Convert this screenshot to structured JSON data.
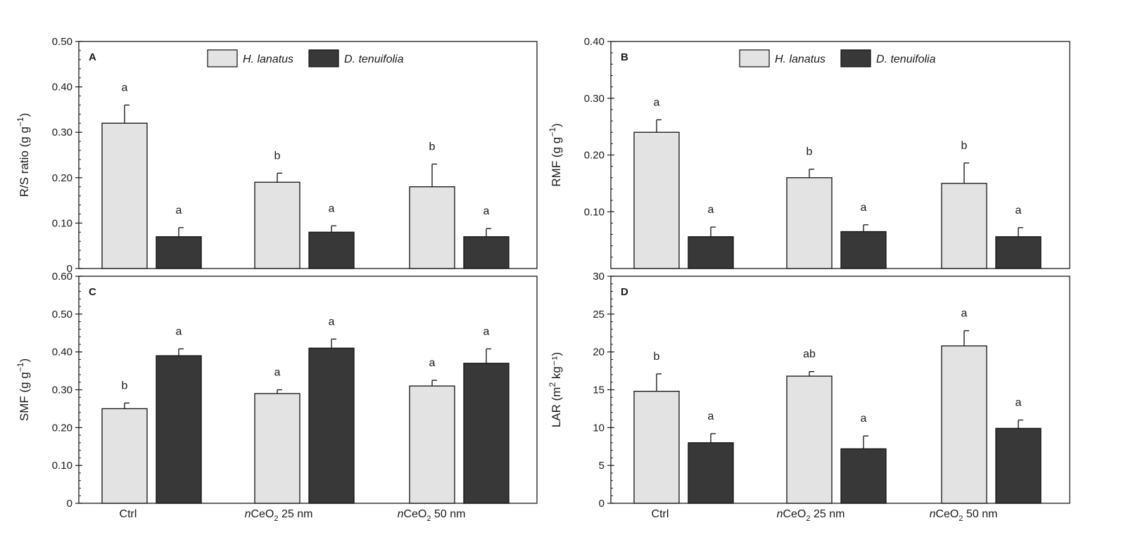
{
  "legend": {
    "series": [
      "H. lanatus",
      "D. tenuifolia"
    ]
  },
  "colors": {
    "h_lanatus": "#e3e3e3",
    "d_tenuifolia": "#383838",
    "axis": "#1a1a1a"
  },
  "x_categories": [
    {
      "prefix": "",
      "main": "Ctrl",
      "sub": "",
      "suffix": ""
    },
    {
      "prefix": "n",
      "main": "CeO",
      "sub": "2",
      "suffix": " 25 nm"
    },
    {
      "prefix": "n",
      "main": "CeO",
      "sub": "2",
      "suffix": " 50 nm"
    }
  ],
  "chart_data": [
    {
      "panel": "A",
      "type": "bar",
      "ylabel": "R/S ratio (g g⁻¹)",
      "ylim": [
        0,
        0.5
      ],
      "yticks": [
        0,
        0.1,
        0.2,
        0.3,
        0.4,
        0.5
      ],
      "ytick_labels": [
        "0",
        "0.10",
        "0.20",
        "0.30",
        "0.40",
        "0.50"
      ],
      "categories": [
        "Ctrl",
        "nCeO2 25 nm",
        "nCeO2 50 nm"
      ],
      "show_xlabels": false,
      "legend": true,
      "series": [
        {
          "name": "H. lanatus",
          "values": [
            0.32,
            0.19,
            0.18
          ],
          "errors": [
            0.04,
            0.02,
            0.05
          ],
          "labels": [
            "a",
            "b",
            "b"
          ]
        },
        {
          "name": "D. tenuifolia",
          "values": [
            0.07,
            0.08,
            0.07
          ],
          "errors": [
            0.02,
            0.014,
            0.018
          ],
          "labels": [
            "a",
            "a",
            "a"
          ]
        }
      ]
    },
    {
      "panel": "B",
      "type": "bar",
      "ylabel": "RMF (g g⁻¹)",
      "ylim": [
        0,
        0.4
      ],
      "yticks": [
        0.1,
        0.2,
        0.3,
        0.4
      ],
      "ytick_labels": [
        "0.10",
        "0.20",
        "0.30",
        "0.40"
      ],
      "categories": [
        "Ctrl",
        "nCeO2 25 nm",
        "nCeO2 50 nm"
      ],
      "show_xlabels": false,
      "legend": true,
      "series": [
        {
          "name": "H. lanatus",
          "values": [
            0.24,
            0.16,
            0.15
          ],
          "errors": [
            0.022,
            0.015,
            0.036
          ],
          "labels": [
            "a",
            "b",
            "b"
          ]
        },
        {
          "name": "D. tenuifolia",
          "values": [
            0.056,
            0.065,
            0.056
          ],
          "errors": [
            0.017,
            0.012,
            0.016
          ],
          "labels": [
            "a",
            "a",
            "a"
          ]
        }
      ]
    },
    {
      "panel": "C",
      "type": "bar",
      "ylabel": "SMF (g g⁻¹)",
      "ylim": [
        0,
        0.6
      ],
      "yticks": [
        0,
        0.1,
        0.2,
        0.3,
        0.4,
        0.5,
        0.6
      ],
      "ytick_labels": [
        "0",
        "0.10",
        "0.20",
        "0.30",
        "0.40",
        "0.50",
        "0.60"
      ],
      "categories": [
        "Ctrl",
        "nCeO2 25 nm",
        "nCeO2 50 nm"
      ],
      "show_xlabels": true,
      "legend": false,
      "series": [
        {
          "name": "H. lanatus",
          "values": [
            0.25,
            0.29,
            0.31
          ],
          "errors": [
            0.015,
            0.01,
            0.015
          ],
          "labels": [
            "b",
            "a",
            "a"
          ]
        },
        {
          "name": "D. tenuifolia",
          "values": [
            0.39,
            0.41,
            0.37
          ],
          "errors": [
            0.018,
            0.024,
            0.038
          ],
          "labels": [
            "a",
            "a",
            "a"
          ]
        }
      ]
    },
    {
      "panel": "D",
      "type": "bar",
      "ylabel": "LAR (m² kg⁻¹)",
      "ylim": [
        0,
        30
      ],
      "yticks": [
        0,
        5,
        10,
        15,
        20,
        25,
        30
      ],
      "ytick_labels": [
        "0",
        "5",
        "10",
        "15",
        "20",
        "25",
        "30"
      ],
      "categories": [
        "Ctrl",
        "nCeO2 25 nm",
        "nCeO2 50 nm"
      ],
      "show_xlabels": true,
      "legend": false,
      "series": [
        {
          "name": "H. lanatus",
          "values": [
            14.8,
            16.8,
            20.8
          ],
          "errors": [
            2.3,
            0.6,
            2.0
          ],
          "labels": [
            "b",
            "ab",
            "a"
          ]
        },
        {
          "name": "D. tenuifolia",
          "values": [
            8.0,
            7.2,
            9.9
          ],
          "errors": [
            1.2,
            1.7,
            1.1
          ],
          "labels": [
            "a",
            "a",
            "a"
          ]
        }
      ]
    }
  ]
}
